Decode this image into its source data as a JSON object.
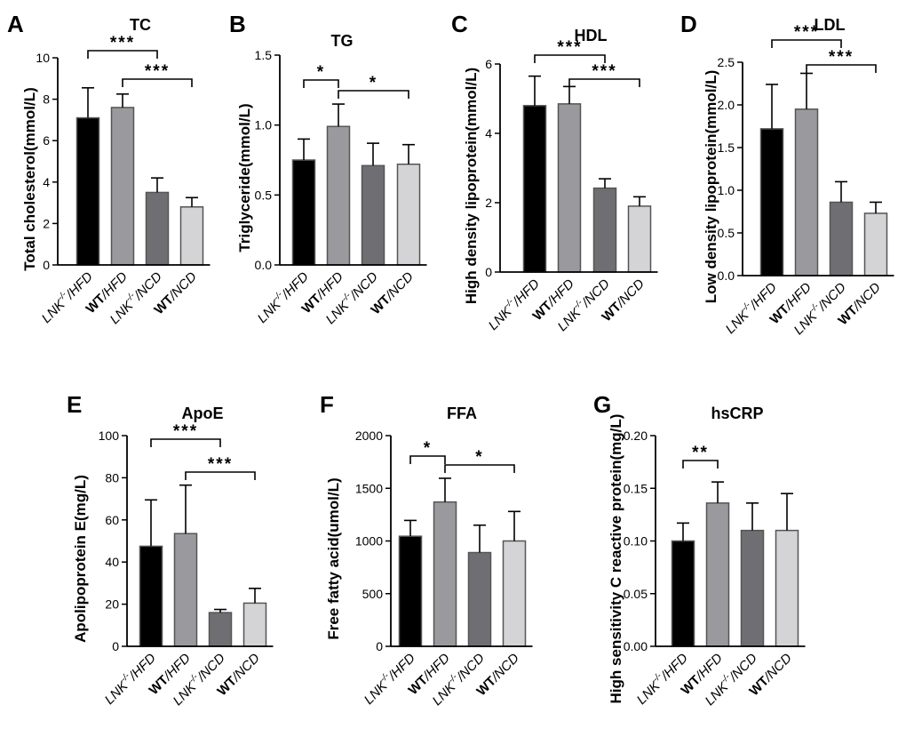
{
  "figure": {
    "type": "bar-panels"
  },
  "colors": {
    "lnk_hfd": "#000000",
    "wt_hfd": "#9a9a9e",
    "lnk_ncd": "#6f6f73",
    "wt_ncd": "#d4d4d6",
    "outline": "#555555",
    "axis": "#000000"
  },
  "categories": [
    {
      "pre": "LNK",
      "sup": "-/-",
      "post": "/HFD",
      "bold": false
    },
    {
      "pre": "WT",
      "sup": "",
      "post": "/HFD",
      "bold": true
    },
    {
      "pre": "LNK",
      "sup": "-/-",
      "post": "/NCD",
      "bold": false
    },
    {
      "pre": "WT",
      "sup": "",
      "post": "/NCD",
      "bold": true
    }
  ],
  "chart_data": [
    {
      "type": "bar",
      "letter": "A",
      "title": "TC",
      "ylabel": "Total cholesterol(mmol/L)",
      "ylim": [
        0,
        10
      ],
      "ticks": [
        "0",
        "2",
        "4",
        "6",
        "8",
        "10"
      ],
      "values": [
        7.1,
        7.6,
        3.5,
        2.8
      ],
      "errors": [
        1.45,
        0.65,
        0.7,
        0.45
      ],
      "sig": [
        {
          "from": 0,
          "to": 2,
          "label": "***"
        },
        {
          "from": 1,
          "to": 3,
          "label": "***"
        }
      ]
    },
    {
      "type": "bar",
      "letter": "B",
      "title": "TG",
      "ylabel": "Triglyceride(mmol/L)",
      "ylim": [
        0,
        1.5
      ],
      "ticks": [
        "0.0",
        "0.5",
        "1.0",
        "1.5"
      ],
      "values": [
        0.75,
        0.99,
        0.71,
        0.72
      ],
      "errors": [
        0.15,
        0.16,
        0.16,
        0.14
      ],
      "sig": [
        {
          "from": 0,
          "to": 1,
          "label": "*"
        },
        {
          "from": 1,
          "to": 3,
          "label": "*"
        }
      ]
    },
    {
      "type": "bar",
      "letter": "C",
      "title": "HDL",
      "ylabel": "High density lipoprotein(mmol/L)",
      "ylim": [
        0,
        6
      ],
      "ticks": [
        "0",
        "2",
        "4",
        "6"
      ],
      "values": [
        4.8,
        4.85,
        2.42,
        1.9
      ],
      "errors": [
        0.85,
        0.5,
        0.27,
        0.27
      ],
      "sig": [
        {
          "from": 0,
          "to": 2,
          "label": "***"
        },
        {
          "from": 1,
          "to": 3,
          "label": "***"
        }
      ]
    },
    {
      "type": "bar",
      "letter": "D",
      "title": "LDL",
      "ylabel": "Low density lipoprotein(mmol/L)",
      "ylim": [
        0,
        2.5
      ],
      "ticks": [
        "0.0",
        "0.5",
        "1.0",
        "1.5",
        "2.0",
        "2.5"
      ],
      "values": [
        1.72,
        1.95,
        0.86,
        0.73
      ],
      "errors": [
        0.52,
        0.42,
        0.24,
        0.13
      ],
      "sig": [
        {
          "from": 0,
          "to": 2,
          "label": "***"
        },
        {
          "from": 1,
          "to": 3,
          "label": "***"
        }
      ]
    },
    {
      "type": "bar",
      "letter": "E",
      "title": "ApoE",
      "ylabel": "Apolipoprotein E(mg/L)",
      "ylim": [
        0,
        100
      ],
      "ticks": [
        "0",
        "20",
        "40",
        "60",
        "80",
        "100"
      ],
      "values": [
        47.5,
        53.5,
        16,
        20.5
      ],
      "errors": [
        22,
        23,
        1.5,
        7
      ],
      "sig": [
        {
          "from": 0,
          "to": 2,
          "label": "***"
        },
        {
          "from": 1,
          "to": 3,
          "label": "***"
        }
      ]
    },
    {
      "type": "bar",
      "letter": "F",
      "title": "FFA",
      "ylabel": "Free fatty acid(umol/L)",
      "ylim": [
        0,
        2000
      ],
      "ticks": [
        "0",
        "500",
        "1000",
        "1500",
        "2000"
      ],
      "values": [
        1045,
        1370,
        890,
        1000
      ],
      "errors": [
        150,
        225,
        260,
        280
      ],
      "sig": [
        {
          "from": 0,
          "to": 1,
          "label": "*"
        },
        {
          "from": 1,
          "to": 3,
          "label": "*"
        }
      ]
    },
    {
      "type": "bar",
      "letter": "G",
      "title": "hsCRP",
      "ylabel": "High sensitivity C reactive protein(mg/L)",
      "ylim": [
        0,
        0.2
      ],
      "ticks": [
        "0.00",
        "0.05",
        "0.10",
        "0.15",
        "0.20"
      ],
      "values": [
        0.1,
        0.136,
        0.11,
        0.11
      ],
      "errors": [
        0.017,
        0.02,
        0.026,
        0.035
      ],
      "sig": [
        {
          "from": 0,
          "to": 1,
          "label": "**"
        }
      ]
    }
  ]
}
